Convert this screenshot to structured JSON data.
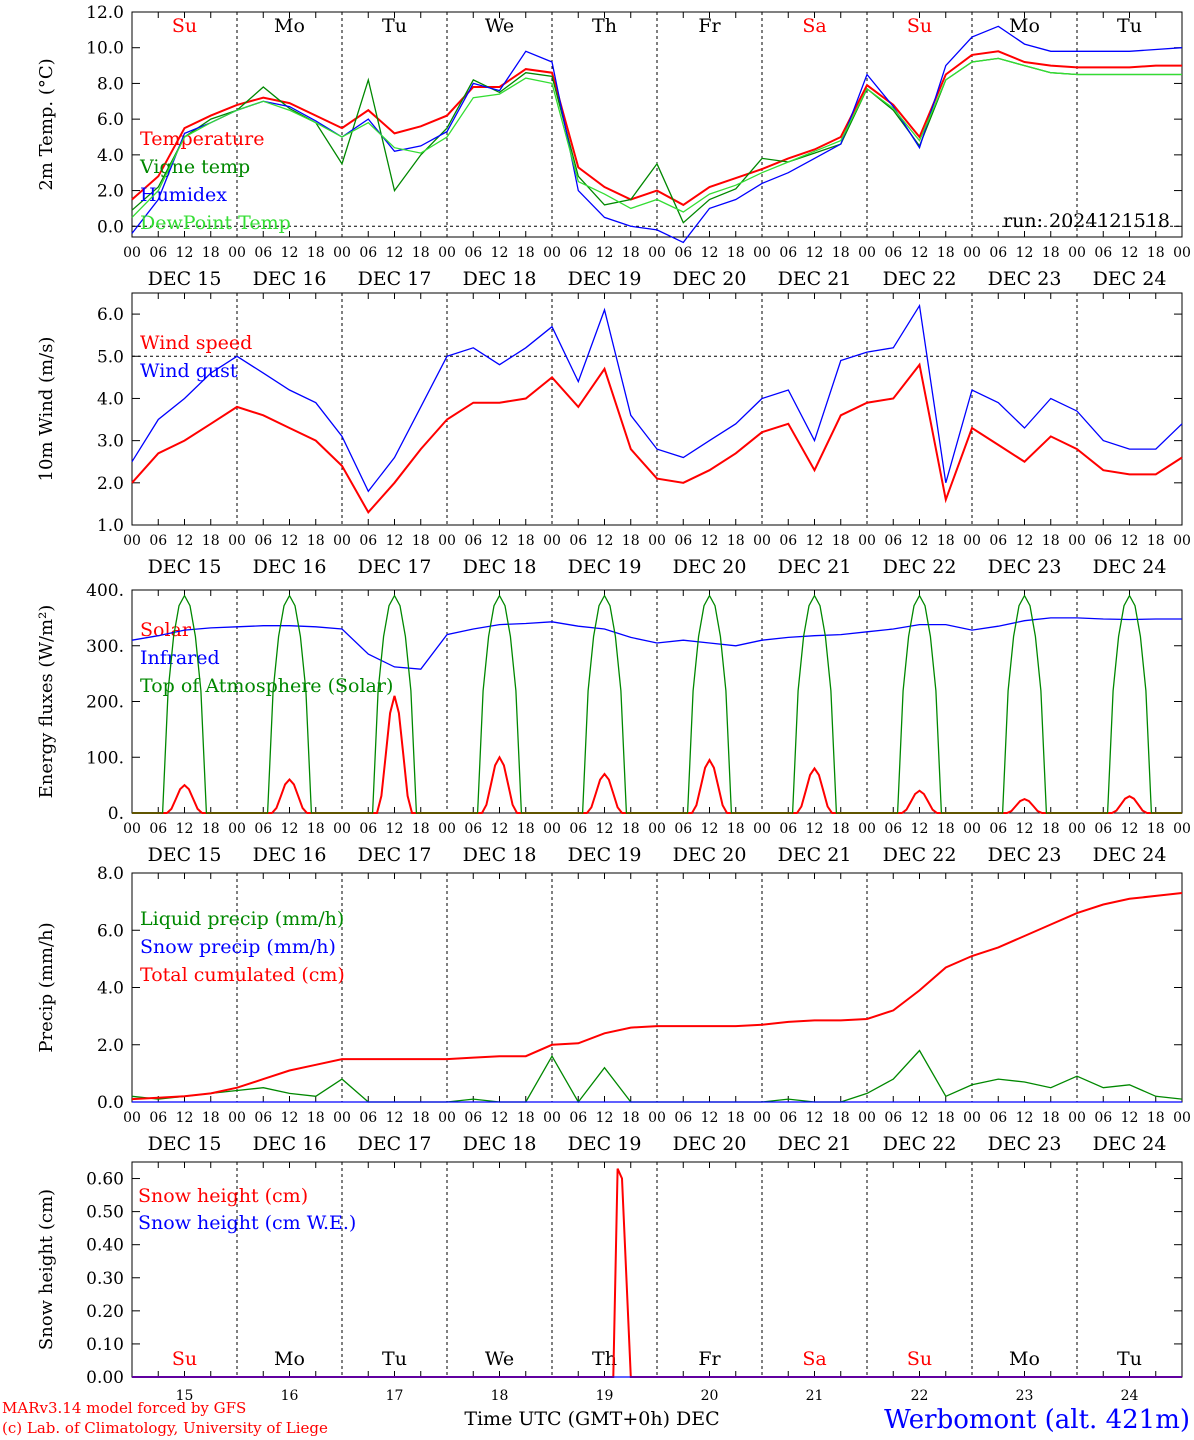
{
  "colors": {
    "red": "#ff0000",
    "green": "#008800",
    "blue": "#0000ff",
    "lightgreen": "#33dd33",
    "black": "#000000"
  },
  "footer": {
    "model": "MARv3.14 model forced by GFS",
    "lab": "(c) Lab. of Climatology, University of Liege",
    "xlabel": "Time UTC (GMT+0h) DEC",
    "station": "Werbomont (alt. 421m)"
  },
  "chart_data": [
    {
      "type": "line",
      "ylabel": "2m Temp. (°C)",
      "ylim": [
        -0.6,
        12.0
      ],
      "yticks": [
        "12.0",
        "10.0",
        "8.0",
        "6.0",
        "4.0",
        "2.0",
        "0.0"
      ],
      "hline": 0.0,
      "weekdays": [
        "Su",
        "Mo",
        "Tu",
        "We",
        "Th",
        "Fr",
        "Sa",
        "Su",
        "Mo",
        "Tu"
      ],
      "weekday_colors": [
        "red",
        "black",
        "black",
        "black",
        "black",
        "black",
        "red",
        "red",
        "black",
        "black"
      ],
      "hour_ticks": [
        "00",
        "06",
        "12",
        "18"
      ],
      "date_labels": [
        "DEC 15",
        "DEC 16",
        "DEC 17",
        "DEC 18",
        "DEC 19",
        "DEC 20",
        "DEC 21",
        "DEC 22",
        "DEC 23",
        "DEC 24"
      ],
      "annotation": "run: 2024121518",
      "x": [
        0,
        6,
        12,
        18,
        24,
        30,
        36,
        42,
        48,
        54,
        60,
        66,
        72,
        78,
        84,
        90,
        96,
        102,
        108,
        114,
        120,
        126,
        132,
        138,
        144,
        150,
        156,
        162,
        168,
        174,
        180,
        186,
        192,
        198,
        204,
        210,
        216,
        222,
        228,
        234,
        240
      ],
      "series": [
        {
          "name": "Temperature",
          "color": "red",
          "values": [
            1.5,
            2.8,
            5.5,
            6.2,
            6.8,
            7.2,
            6.9,
            6.2,
            5.5,
            6.5,
            5.2,
            5.6,
            6.2,
            7.8,
            7.8,
            8.8,
            8.6,
            3.3,
            2.2,
            1.5,
            2.0,
            1.2,
            2.2,
            2.7,
            3.2,
            3.8,
            4.3,
            5.0,
            7.9,
            6.8,
            5.0,
            8.5,
            9.6,
            9.8,
            9.2,
            9.0,
            8.9,
            8.9,
            8.9,
            9.0,
            9.0
          ]
        },
        {
          "name": "Vigne temp",
          "color": "green",
          "values": [
            0.9,
            2.2,
            5.0,
            6.0,
            6.5,
            7.8,
            6.6,
            5.8,
            3.5,
            8.2,
            2.0,
            4.0,
            5.5,
            8.2,
            7.5,
            8.6,
            8.4,
            2.8,
            1.2,
            1.5,
            3.5,
            0.2,
            1.5,
            2.1,
            3.8,
            3.6,
            4.1,
            4.6,
            7.7,
            6.5,
            4.5,
            8.2,
            9.2,
            9.4,
            9.0,
            8.6,
            8.5,
            8.5,
            8.5,
            8.5,
            8.5
          ]
        },
        {
          "name": "Humidex",
          "color": "blue",
          "values": [
            -0.4,
            1.5,
            5.2,
            5.8,
            6.5,
            7.0,
            6.7,
            5.9,
            5.0,
            6.0,
            4.2,
            4.5,
            5.3,
            8.0,
            7.6,
            9.8,
            9.2,
            2.0,
            0.5,
            0.0,
            -0.2,
            -0.9,
            1.0,
            1.5,
            2.4,
            3.0,
            3.8,
            4.6,
            8.5,
            6.7,
            4.4,
            9.0,
            10.6,
            11.2,
            10.2,
            9.8,
            9.8,
            9.8,
            9.8,
            9.9,
            10.0
          ]
        },
        {
          "name": "DewPoint Temp",
          "color": "lightgreen",
          "values": [
            0.5,
            2.0,
            5.0,
            5.8,
            6.5,
            7.0,
            6.5,
            5.8,
            5.0,
            5.8,
            4.4,
            4.1,
            5.0,
            7.2,
            7.4,
            8.3,
            8.0,
            2.5,
            1.8,
            1.0,
            1.5,
            0.8,
            1.8,
            2.3,
            3.0,
            3.6,
            4.2,
            4.8,
            7.7,
            6.6,
            4.8,
            8.2,
            9.2,
            9.4,
            9.0,
            8.6,
            8.5,
            8.5,
            8.5,
            8.5,
            8.5
          ]
        }
      ]
    },
    {
      "type": "line",
      "ylabel": "10m Wind (m/s)",
      "ylim": [
        1.0,
        6.5
      ],
      "yticks": [
        "6.0",
        "5.0",
        "4.0",
        "3.0",
        "2.0",
        "1.0"
      ],
      "hline": 5.0,
      "hour_ticks": [
        "00",
        "06",
        "12",
        "18"
      ],
      "date_labels": [
        "DEC 15",
        "DEC 16",
        "DEC 17",
        "DEC 18",
        "DEC 19",
        "DEC 20",
        "DEC 21",
        "DEC 22",
        "DEC 23",
        "DEC 24"
      ],
      "x": [
        0,
        6,
        12,
        18,
        24,
        30,
        36,
        42,
        48,
        54,
        60,
        66,
        72,
        78,
        84,
        90,
        96,
        102,
        108,
        114,
        120,
        126,
        132,
        138,
        144,
        150,
        156,
        162,
        168,
        174,
        180,
        186,
        192,
        198,
        204,
        210,
        216,
        222,
        228,
        234,
        240
      ],
      "series": [
        {
          "name": "Wind speed",
          "color": "red",
          "values": [
            2.0,
            2.7,
            3.0,
            3.4,
            3.8,
            3.6,
            3.3,
            3.0,
            2.4,
            1.3,
            2.0,
            2.8,
            3.5,
            3.9,
            3.9,
            4.0,
            4.5,
            3.8,
            4.7,
            2.8,
            2.1,
            2.0,
            2.3,
            2.7,
            3.2,
            3.4,
            2.3,
            3.6,
            3.9,
            4.0,
            4.8,
            1.6,
            3.3,
            2.9,
            2.5,
            3.1,
            2.8,
            2.3,
            2.2,
            2.2,
            2.6
          ]
        },
        {
          "name": "Wind gust",
          "color": "blue",
          "values": [
            2.5,
            3.5,
            4.0,
            4.6,
            5.0,
            4.6,
            4.2,
            3.9,
            3.1,
            1.8,
            2.6,
            3.8,
            5.0,
            5.2,
            4.8,
            5.2,
            5.7,
            4.4,
            6.1,
            3.6,
            2.8,
            2.6,
            3.0,
            3.4,
            4.0,
            4.2,
            3.0,
            4.9,
            5.1,
            5.2,
            6.2,
            2.0,
            4.2,
            3.9,
            3.3,
            4.0,
            3.7,
            3.0,
            2.8,
            2.8,
            3.4
          ]
        }
      ]
    },
    {
      "type": "line",
      "ylabel": "Energy fluxes (W/m²)",
      "ylim": [
        0,
        400
      ],
      "yticks": [
        "400.",
        "300.",
        "200.",
        "100.",
        "0."
      ],
      "hour_ticks": [
        "00",
        "06",
        "12",
        "18"
      ],
      "date_labels": [
        "DEC 15",
        "DEC 16",
        "DEC 17",
        "DEC 18",
        "DEC 19",
        "DEC 20",
        "DEC 21",
        "DEC 22",
        "DEC 23",
        "DEC 24"
      ],
      "daily_peaks": {
        "Solar": [
          50,
          60,
          210,
          100,
          70,
          95,
          80,
          40,
          25,
          30
        ],
        "Top of Atmosphere (Solar)": [
          390,
          390,
          390,
          390,
          390,
          390,
          390,
          390,
          390,
          390
        ]
      },
      "series": [
        {
          "name": "Solar",
          "color": "red",
          "values": []
        },
        {
          "name": "Infrared",
          "color": "blue",
          "x": [
            0,
            6,
            12,
            18,
            24,
            30,
            36,
            42,
            48,
            54,
            60,
            66,
            72,
            78,
            84,
            90,
            96,
            102,
            108,
            114,
            120,
            126,
            132,
            138,
            144,
            150,
            156,
            162,
            168,
            174,
            180,
            186,
            192,
            198,
            204,
            210,
            216,
            222,
            228,
            234,
            240
          ],
          "values": [
            310,
            318,
            328,
            332,
            334,
            336,
            336,
            334,
            330,
            285,
            262,
            258,
            320,
            330,
            338,
            340,
            343,
            335,
            330,
            315,
            305,
            310,
            305,
            300,
            310,
            315,
            318,
            320,
            325,
            330,
            338,
            338,
            328,
            335,
            345,
            350,
            350,
            348,
            347,
            348,
            348
          ]
        },
        {
          "name": "Top of Atmosphere (Solar)",
          "color": "green",
          "values": []
        }
      ]
    },
    {
      "type": "line",
      "ylabel": "Precip (mm/h)",
      "ylim": [
        0,
        8.0
      ],
      "yticks": [
        "8.0",
        "6.0",
        "4.0",
        "2.0",
        "0.0"
      ],
      "hour_ticks": [
        "00",
        "06",
        "12",
        "18"
      ],
      "date_labels": [
        "DEC 15",
        "DEC 16",
        "DEC 17",
        "DEC 18",
        "DEC 19",
        "DEC 20",
        "DEC 21",
        "DEC 22",
        "DEC 23",
        "DEC 24"
      ],
      "x": [
        0,
        6,
        12,
        18,
        24,
        30,
        36,
        42,
        48,
        54,
        60,
        66,
        72,
        78,
        84,
        90,
        96,
        102,
        108,
        114,
        120,
        126,
        132,
        138,
        144,
        150,
        156,
        162,
        168,
        174,
        180,
        186,
        192,
        198,
        204,
        210,
        216,
        222,
        228,
        234,
        240
      ],
      "series": [
        {
          "name": "Liquid precip (mm/h)",
          "color": "green",
          "values": [
            0.2,
            0.1,
            0.2,
            0.3,
            0.4,
            0.5,
            0.3,
            0.2,
            0.8,
            0.0,
            0.0,
            0.0,
            0.0,
            0.1,
            0.0,
            0.0,
            1.6,
            0.0,
            1.2,
            0.0,
            0.0,
            0.0,
            0.0,
            0.0,
            0.0,
            0.1,
            0.0,
            0.0,
            0.3,
            0.8,
            1.8,
            0.2,
            0.6,
            0.8,
            0.7,
            0.5,
            0.9,
            0.5,
            0.6,
            0.2,
            0.1
          ]
        },
        {
          "name": "Snow precip (mm/h)",
          "color": "blue",
          "values": [
            0,
            0,
            0,
            0,
            0,
            0,
            0,
            0,
            0,
            0,
            0,
            0,
            0,
            0,
            0,
            0,
            0,
            0,
            0,
            0,
            0,
            0,
            0,
            0,
            0,
            0,
            0,
            0,
            0,
            0,
            0,
            0,
            0,
            0,
            0,
            0,
            0,
            0,
            0,
            0,
            0
          ]
        },
        {
          "name": "Total cumulated (cm)",
          "color": "red",
          "values": [
            0.1,
            0.15,
            0.2,
            0.3,
            0.5,
            0.8,
            1.1,
            1.3,
            1.5,
            1.5,
            1.5,
            1.5,
            1.5,
            1.55,
            1.6,
            1.6,
            2.0,
            2.05,
            2.4,
            2.6,
            2.65,
            2.65,
            2.65,
            2.65,
            2.7,
            2.8,
            2.85,
            2.85,
            2.9,
            3.2,
            3.9,
            4.7,
            5.1,
            5.4,
            5.8,
            6.2,
            6.6,
            6.9,
            7.1,
            7.2,
            7.3
          ]
        }
      ]
    },
    {
      "type": "line",
      "ylabel": "Snow height (cm)",
      "ylim": [
        0,
        0.65
      ],
      "yticks": [
        "0.60",
        "0.50",
        "0.40",
        "0.30",
        "0.20",
        "0.10",
        "0.00"
      ],
      "weekdays": [
        "Su",
        "Mo",
        "Tu",
        "We",
        "Th",
        "Fr",
        "Sa",
        "Su",
        "Mo",
        "Tu"
      ],
      "weekday_colors": [
        "red",
        "black",
        "black",
        "black",
        "black",
        "black",
        "red",
        "red",
        "black",
        "black"
      ],
      "day_numbers": [
        "15",
        "16",
        "17",
        "18",
        "19",
        "20",
        "21",
        "22",
        "23",
        "24"
      ],
      "x": [
        0,
        110,
        111,
        112,
        114,
        240
      ],
      "series": [
        {
          "name": "Snow height (cm)",
          "color": "red",
          "values": [
            0,
            0,
            0.63,
            0.6,
            0,
            0
          ]
        },
        {
          "name": "Snow height (cm W.E.)",
          "color": "blue",
          "values": [
            0,
            0,
            0,
            0,
            0,
            0
          ]
        }
      ]
    }
  ]
}
